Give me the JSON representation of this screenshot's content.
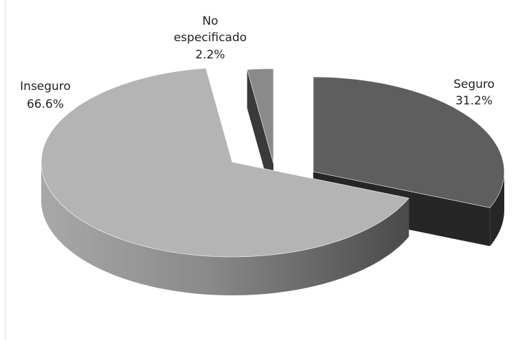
{
  "chart_data": {
    "type": "pie",
    "style": "3d-exploded",
    "title": "",
    "slices": [
      {
        "name": "Seguro",
        "value": 31.2,
        "label_name": "Seguro",
        "label_value": "31.2%",
        "color": "#5e5e5e",
        "side_color": "#262626"
      },
      {
        "name": "Inseguro",
        "value": 66.6,
        "label_name": "Inseguro",
        "label_value": "66.6%",
        "color": "#b4b4b4",
        "side_color": "#6c6c6c"
      },
      {
        "name": "No especificado",
        "value": 2.2,
        "label_name": "No especificado",
        "label_value": "2.2%",
        "color": "#8a8a8a",
        "side_color": "#3a3a3a"
      }
    ]
  }
}
